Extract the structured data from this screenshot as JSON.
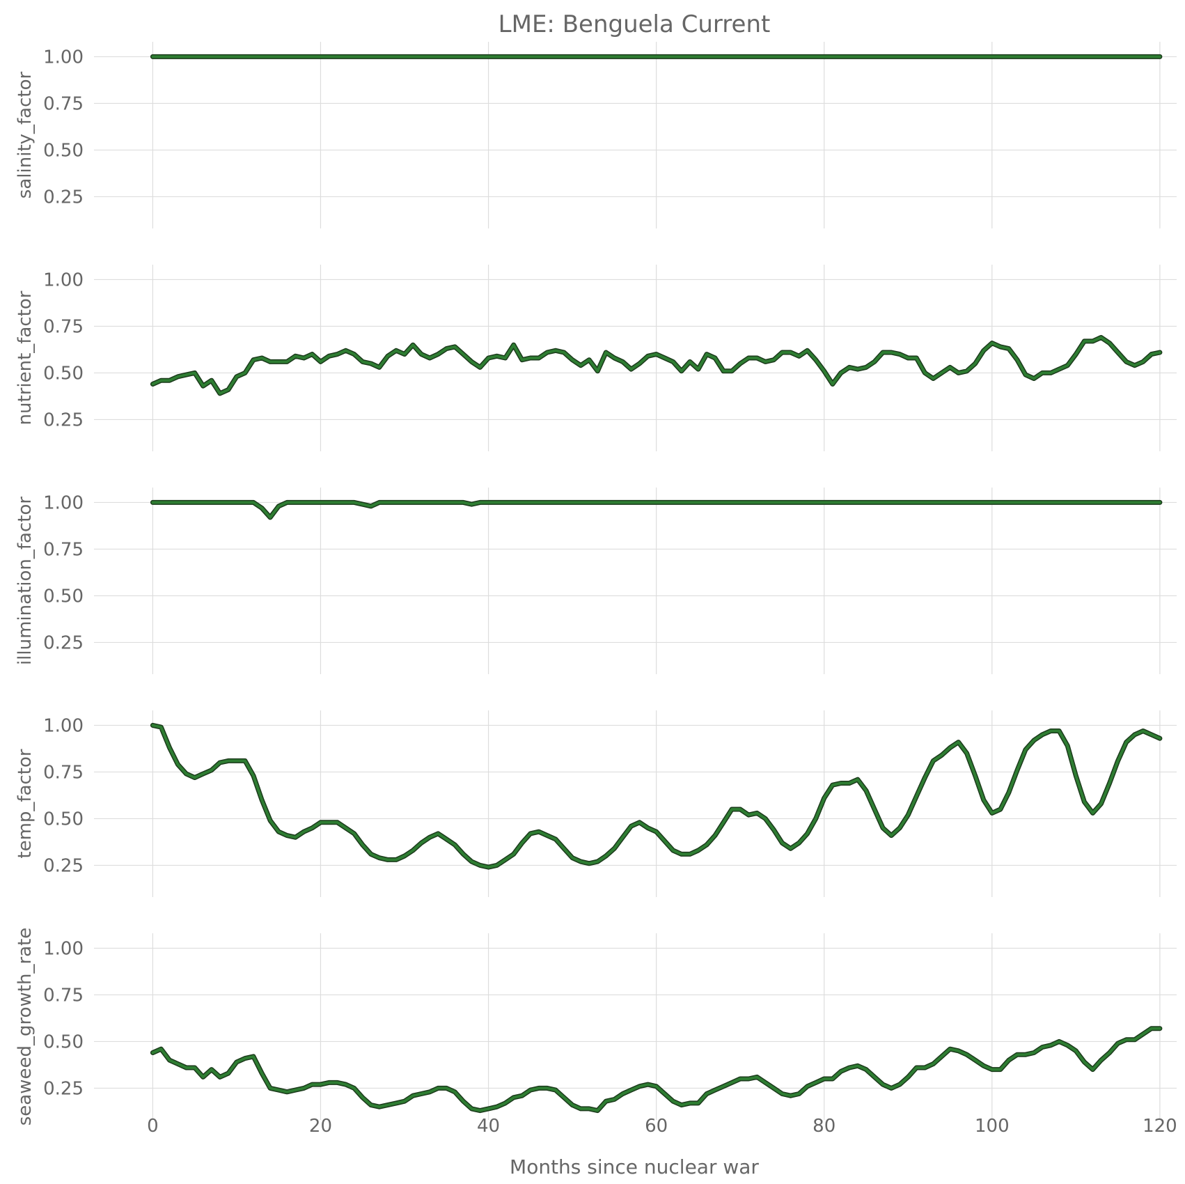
{
  "chart_data": {
    "type": "line",
    "title": "LME: Benguela Current",
    "xlabel": "Months since nuclear war",
    "xlim": [
      -7,
      122
    ],
    "x_ticks": [
      0,
      20,
      40,
      60,
      80,
      100,
      120
    ],
    "ylim": [
      0.08,
      1.08
    ],
    "y_ticks": [
      0.25,
      0.5,
      0.75,
      1.0
    ],
    "y_tick_labels": [
      "0.25",
      "0.50",
      "0.75",
      "1.00"
    ],
    "grid": true,
    "line_color": "#2e7d32",
    "line_outline_color": "#1b3a1b",
    "panels": [
      {
        "ylabel": "salinity_factor",
        "values": [
          1.0,
          1.0,
          1.0,
          1.0,
          1.0,
          1.0,
          1.0,
          1.0,
          1.0,
          1.0,
          1.0,
          1.0,
          1.0,
          1.0,
          1.0,
          1.0,
          1.0,
          1.0,
          1.0,
          1.0,
          1.0,
          1.0,
          1.0,
          1.0,
          1.0,
          1.0,
          1.0,
          1.0,
          1.0,
          1.0,
          1.0,
          1.0,
          1.0,
          1.0,
          1.0,
          1.0,
          1.0,
          1.0,
          1.0,
          1.0,
          1.0,
          1.0,
          1.0,
          1.0,
          1.0,
          1.0,
          1.0,
          1.0,
          1.0,
          1.0,
          1.0,
          1.0,
          1.0,
          1.0,
          1.0,
          1.0,
          1.0,
          1.0,
          1.0,
          1.0,
          1.0,
          1.0,
          1.0,
          1.0,
          1.0,
          1.0,
          1.0,
          1.0,
          1.0,
          1.0,
          1.0,
          1.0,
          1.0,
          1.0,
          1.0,
          1.0,
          1.0,
          1.0,
          1.0,
          1.0,
          1.0,
          1.0,
          1.0,
          1.0,
          1.0,
          1.0,
          1.0,
          1.0,
          1.0,
          1.0,
          1.0,
          1.0,
          1.0,
          1.0,
          1.0,
          1.0,
          1.0,
          1.0,
          1.0,
          1.0,
          1.0,
          1.0,
          1.0,
          1.0,
          1.0,
          1.0,
          1.0,
          1.0,
          1.0,
          1.0,
          1.0,
          1.0,
          1.0,
          1.0,
          1.0,
          1.0,
          1.0,
          1.0,
          1.0,
          1.0,
          1.0
        ]
      },
      {
        "ylabel": "nutrient_factor",
        "values": [
          0.44,
          0.46,
          0.46,
          0.48,
          0.49,
          0.5,
          0.43,
          0.46,
          0.39,
          0.41,
          0.48,
          0.5,
          0.57,
          0.58,
          0.56,
          0.56,
          0.56,
          0.59,
          0.58,
          0.6,
          0.56,
          0.59,
          0.6,
          0.62,
          0.6,
          0.56,
          0.55,
          0.53,
          0.59,
          0.62,
          0.6,
          0.65,
          0.6,
          0.58,
          0.6,
          0.63,
          0.64,
          0.6,
          0.56,
          0.53,
          0.58,
          0.59,
          0.58,
          0.65,
          0.57,
          0.58,
          0.58,
          0.61,
          0.62,
          0.61,
          0.57,
          0.54,
          0.57,
          0.51,
          0.61,
          0.58,
          0.56,
          0.52,
          0.55,
          0.59,
          0.6,
          0.58,
          0.56,
          0.51,
          0.56,
          0.52,
          0.6,
          0.58,
          0.51,
          0.51,
          0.55,
          0.58,
          0.58,
          0.56,
          0.57,
          0.61,
          0.61,
          0.59,
          0.62,
          0.57,
          0.51,
          0.44,
          0.5,
          0.53,
          0.52,
          0.53,
          0.56,
          0.61,
          0.61,
          0.6,
          0.58,
          0.58,
          0.5,
          0.47,
          0.5,
          0.53,
          0.5,
          0.51,
          0.55,
          0.62,
          0.66,
          0.64,
          0.63,
          0.57,
          0.49,
          0.47,
          0.5,
          0.5,
          0.52,
          0.54,
          0.6,
          0.67,
          0.67,
          0.69,
          0.66,
          0.61,
          0.56,
          0.54,
          0.56,
          0.6,
          0.61
        ]
      },
      {
        "ylabel": "illumination_factor",
        "values": [
          1.0,
          1.0,
          1.0,
          1.0,
          1.0,
          1.0,
          1.0,
          1.0,
          1.0,
          1.0,
          1.0,
          1.0,
          1.0,
          0.97,
          0.92,
          0.98,
          1.0,
          1.0,
          1.0,
          1.0,
          1.0,
          1.0,
          1.0,
          1.0,
          1.0,
          0.99,
          0.98,
          1.0,
          1.0,
          1.0,
          1.0,
          1.0,
          1.0,
          1.0,
          1.0,
          1.0,
          1.0,
          1.0,
          0.99,
          1.0,
          1.0,
          1.0,
          1.0,
          1.0,
          1.0,
          1.0,
          1.0,
          1.0,
          1.0,
          1.0,
          1.0,
          1.0,
          1.0,
          1.0,
          1.0,
          1.0,
          1.0,
          1.0,
          1.0,
          1.0,
          1.0,
          1.0,
          1.0,
          1.0,
          1.0,
          1.0,
          1.0,
          1.0,
          1.0,
          1.0,
          1.0,
          1.0,
          1.0,
          1.0,
          1.0,
          1.0,
          1.0,
          1.0,
          1.0,
          1.0,
          1.0,
          1.0,
          1.0,
          1.0,
          1.0,
          1.0,
          1.0,
          1.0,
          1.0,
          1.0,
          1.0,
          1.0,
          1.0,
          1.0,
          1.0,
          1.0,
          1.0,
          1.0,
          1.0,
          1.0,
          1.0,
          1.0,
          1.0,
          1.0,
          1.0,
          1.0,
          1.0,
          1.0,
          1.0,
          1.0,
          1.0,
          1.0,
          1.0,
          1.0,
          1.0,
          1.0,
          1.0,
          1.0,
          1.0,
          1.0,
          1.0
        ]
      },
      {
        "ylabel": "temp_factor",
        "values": [
          1.0,
          0.99,
          0.88,
          0.79,
          0.74,
          0.72,
          0.74,
          0.76,
          0.8,
          0.81,
          0.81,
          0.81,
          0.73,
          0.6,
          0.49,
          0.43,
          0.41,
          0.4,
          0.43,
          0.45,
          0.48,
          0.48,
          0.48,
          0.45,
          0.42,
          0.36,
          0.31,
          0.29,
          0.28,
          0.28,
          0.3,
          0.33,
          0.37,
          0.4,
          0.42,
          0.39,
          0.36,
          0.31,
          0.27,
          0.25,
          0.24,
          0.25,
          0.28,
          0.31,
          0.37,
          0.42,
          0.43,
          0.41,
          0.39,
          0.34,
          0.29,
          0.27,
          0.26,
          0.27,
          0.3,
          0.34,
          0.4,
          0.46,
          0.48,
          0.45,
          0.43,
          0.38,
          0.33,
          0.31,
          0.31,
          0.33,
          0.36,
          0.41,
          0.48,
          0.55,
          0.55,
          0.52,
          0.53,
          0.5,
          0.44,
          0.37,
          0.34,
          0.37,
          0.42,
          0.5,
          0.61,
          0.68,
          0.69,
          0.69,
          0.71,
          0.65,
          0.55,
          0.45,
          0.41,
          0.45,
          0.52,
          0.62,
          0.72,
          0.81,
          0.84,
          0.88,
          0.91,
          0.85,
          0.73,
          0.6,
          0.53,
          0.55,
          0.64,
          0.76,
          0.87,
          0.92,
          0.95,
          0.97,
          0.97,
          0.89,
          0.73,
          0.59,
          0.53,
          0.58,
          0.69,
          0.81,
          0.91,
          0.95,
          0.97,
          0.95,
          0.93
        ]
      },
      {
        "ylabel": "seaweed_growth_rate",
        "values": [
          0.44,
          0.46,
          0.4,
          0.38,
          0.36,
          0.36,
          0.31,
          0.35,
          0.31,
          0.33,
          0.39,
          0.41,
          0.42,
          0.33,
          0.25,
          0.24,
          0.23,
          0.24,
          0.25,
          0.27,
          0.27,
          0.28,
          0.28,
          0.27,
          0.25,
          0.2,
          0.16,
          0.15,
          0.16,
          0.17,
          0.18,
          0.21,
          0.22,
          0.23,
          0.25,
          0.25,
          0.23,
          0.18,
          0.14,
          0.13,
          0.14,
          0.15,
          0.17,
          0.2,
          0.21,
          0.24,
          0.25,
          0.25,
          0.24,
          0.2,
          0.16,
          0.14,
          0.14,
          0.13,
          0.18,
          0.19,
          0.22,
          0.24,
          0.26,
          0.27,
          0.26,
          0.22,
          0.18,
          0.16,
          0.17,
          0.17,
          0.22,
          0.24,
          0.26,
          0.28,
          0.3,
          0.3,
          0.31,
          0.28,
          0.25,
          0.22,
          0.21,
          0.22,
          0.26,
          0.28,
          0.3,
          0.3,
          0.34,
          0.36,
          0.37,
          0.35,
          0.31,
          0.27,
          0.25,
          0.27,
          0.31,
          0.36,
          0.36,
          0.38,
          0.42,
          0.46,
          0.45,
          0.43,
          0.4,
          0.37,
          0.35,
          0.35,
          0.4,
          0.43,
          0.43,
          0.44,
          0.47,
          0.48,
          0.5,
          0.48,
          0.45,
          0.39,
          0.35,
          0.4,
          0.44,
          0.49,
          0.51,
          0.51,
          0.54,
          0.57,
          0.57
        ]
      }
    ]
  }
}
